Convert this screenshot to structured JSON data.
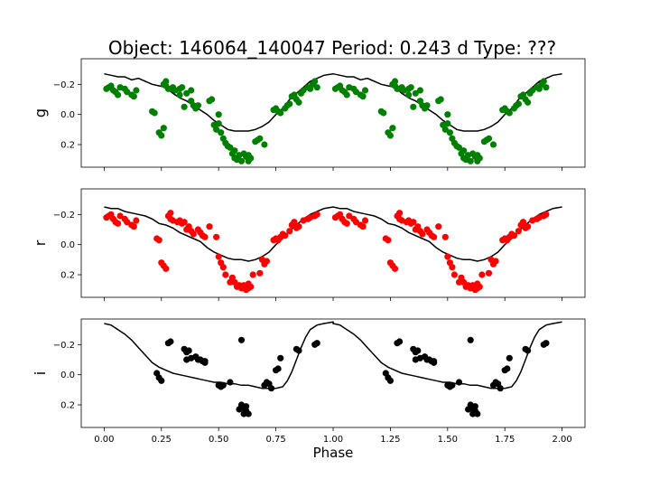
{
  "title": "Object: 146064_140047    Period: 0.243 d    Type: ???",
  "xlabel": "Phase",
  "chart_data": [
    {
      "type": "scatter",
      "panel": "g",
      "ylabel": "g",
      "color": "#008000",
      "x_ticks": [
        0.0,
        0.25,
        0.5,
        0.75,
        1.0,
        1.25,
        1.5,
        1.75,
        2.0
      ],
      "y_ticks": [
        -0.2,
        0.0,
        0.2
      ],
      "y_tick_labels": [
        "−0.2",
        "0.0",
        "0.2"
      ],
      "ylim": [
        0.35,
        -0.37
      ],
      "xlim": [
        -0.1,
        2.1
      ],
      "points": [
        [
          0.01,
          -0.17
        ],
        [
          0.02,
          -0.18
        ],
        [
          0.03,
          -0.19
        ],
        [
          0.04,
          -0.16
        ],
        [
          0.05,
          -0.15
        ],
        [
          0.06,
          -0.13
        ],
        [
          0.07,
          -0.18
        ],
        [
          0.09,
          -0.17
        ],
        [
          0.1,
          -0.15
        ],
        [
          0.12,
          -0.13
        ],
        [
          0.13,
          -0.12
        ],
        [
          0.14,
          -0.16
        ],
        [
          0.21,
          -0.02
        ],
        [
          0.22,
          -0.01
        ],
        [
          0.24,
          0.12
        ],
        [
          0.25,
          0.14
        ],
        [
          0.26,
          0.09
        ],
        [
          0.26,
          -0.2
        ],
        [
          0.27,
          -0.19
        ],
        [
          0.27,
          -0.22
        ],
        [
          0.28,
          -0.17
        ],
        [
          0.29,
          -0.17
        ],
        [
          0.3,
          -0.18
        ],
        [
          0.31,
          -0.16
        ],
        [
          0.33,
          -0.17
        ],
        [
          0.33,
          -0.13
        ],
        [
          0.34,
          -0.18
        ],
        [
          0.35,
          -0.05
        ],
        [
          0.36,
          -0.14
        ],
        [
          0.38,
          -0.16
        ],
        [
          0.38,
          -0.09
        ],
        [
          0.39,
          -0.06
        ],
        [
          0.4,
          -0.04
        ],
        [
          0.41,
          -0.06
        ],
        [
          0.46,
          -0.09
        ],
        [
          0.47,
          -0.1
        ],
        [
          0.48,
          0.07
        ],
        [
          0.49,
          0.1
        ],
        [
          0.5,
          0.06
        ],
        [
          0.5,
          0.0
        ],
        [
          0.51,
          0.12
        ],
        [
          0.52,
          0.16
        ],
        [
          0.53,
          0.19
        ],
        [
          0.54,
          0.21
        ],
        [
          0.55,
          0.22
        ],
        [
          0.56,
          0.26
        ],
        [
          0.57,
          0.24
        ],
        [
          0.57,
          0.29
        ],
        [
          0.58,
          0.3
        ],
        [
          0.59,
          0.27
        ],
        [
          0.6,
          0.31
        ],
        [
          0.61,
          0.26
        ],
        [
          0.62,
          0.28
        ],
        [
          0.63,
          0.31
        ],
        [
          0.63,
          0.27
        ],
        [
          0.64,
          0.29
        ],
        [
          0.66,
          0.18
        ],
        [
          0.67,
          0.17
        ],
        [
          0.68,
          0.16
        ],
        [
          0.7,
          0.2
        ],
        [
          0.74,
          -0.03
        ],
        [
          0.75,
          -0.04
        ],
        [
          0.76,
          -0.02
        ],
        [
          0.77,
          -0.01
        ],
        [
          0.79,
          -0.04
        ],
        [
          0.8,
          -0.06
        ],
        [
          0.81,
          -0.07
        ],
        [
          0.82,
          -0.12
        ],
        [
          0.83,
          -0.13
        ],
        [
          0.84,
          -0.1
        ],
        [
          0.85,
          -0.08
        ],
        [
          0.86,
          -0.14
        ],
        [
          0.87,
          -0.16
        ],
        [
          0.89,
          -0.18
        ],
        [
          0.9,
          -0.17
        ],
        [
          0.91,
          -0.2
        ],
        [
          0.92,
          -0.22
        ],
        [
          0.93,
          -0.18
        ]
      ]
    },
    {
      "type": "scatter",
      "panel": "r",
      "ylabel": "r",
      "color": "#ff0000",
      "x_ticks": [
        0.0,
        0.25,
        0.5,
        0.75,
        1.0,
        1.25,
        1.5,
        1.75,
        2.0
      ],
      "y_ticks": [
        -0.2,
        0.0,
        0.2
      ],
      "y_tick_labels": [
        "−0.2",
        "0.0",
        "0.2"
      ],
      "ylim": [
        0.35,
        -0.37
      ],
      "xlim": [
        -0.1,
        2.1
      ],
      "points": [
        [
          0.01,
          -0.18
        ],
        [
          0.02,
          -0.19
        ],
        [
          0.03,
          -0.2
        ],
        [
          0.04,
          -0.17
        ],
        [
          0.05,
          -0.15
        ],
        [
          0.06,
          -0.14
        ],
        [
          0.07,
          -0.19
        ],
        [
          0.09,
          -0.17
        ],
        [
          0.1,
          -0.15
        ],
        [
          0.12,
          -0.13
        ],
        [
          0.13,
          -0.12
        ],
        [
          0.14,
          -0.16
        ],
        [
          0.23,
          -0.04
        ],
        [
          0.24,
          -0.03
        ],
        [
          0.25,
          0.12
        ],
        [
          0.26,
          0.14
        ],
        [
          0.27,
          0.16
        ],
        [
          0.28,
          -0.19
        ],
        [
          0.29,
          -0.21
        ],
        [
          0.29,
          -0.17
        ],
        [
          0.3,
          -0.16
        ],
        [
          0.32,
          -0.15
        ],
        [
          0.33,
          -0.16
        ],
        [
          0.34,
          -0.14
        ],
        [
          0.35,
          -0.15
        ],
        [
          0.36,
          -0.1
        ],
        [
          0.37,
          -0.12
        ],
        [
          0.38,
          -0.09
        ],
        [
          0.39,
          -0.07
        ],
        [
          0.41,
          -0.1
        ],
        [
          0.42,
          -0.08
        ],
        [
          0.43,
          -0.06
        ],
        [
          0.44,
          -0.05
        ],
        [
          0.46,
          -0.12
        ],
        [
          0.49,
          -0.05
        ],
        [
          0.5,
          0.08
        ],
        [
          0.51,
          0.12
        ],
        [
          0.52,
          0.15
        ],
        [
          0.53,
          0.2
        ],
        [
          0.55,
          0.25
        ],
        [
          0.56,
          0.22
        ],
        [
          0.57,
          0.25
        ],
        [
          0.58,
          0.28
        ],
        [
          0.59,
          0.27
        ],
        [
          0.6,
          0.29
        ],
        [
          0.61,
          0.27
        ],
        [
          0.62,
          0.3
        ],
        [
          0.63,
          0.29
        ],
        [
          0.63,
          0.26
        ],
        [
          0.64,
          0.28
        ],
        [
          0.65,
          0.2
        ],
        [
          0.68,
          0.19
        ],
        [
          0.69,
          0.1
        ],
        [
          0.7,
          0.13
        ],
        [
          0.71,
          0.11
        ],
        [
          0.74,
          -0.03
        ],
        [
          0.75,
          -0.04
        ],
        [
          0.76,
          -0.03
        ],
        [
          0.77,
          -0.05
        ],
        [
          0.78,
          -0.07
        ],
        [
          0.79,
          -0.06
        ],
        [
          0.81,
          -0.09
        ],
        [
          0.82,
          -0.13
        ],
        [
          0.83,
          -0.15
        ],
        [
          0.84,
          -0.11
        ],
        [
          0.85,
          -0.12
        ],
        [
          0.87,
          -0.16
        ],
        [
          0.89,
          -0.17
        ],
        [
          0.9,
          -0.18
        ],
        [
          0.92,
          -0.19
        ],
        [
          0.93,
          -0.2
        ]
      ]
    },
    {
      "type": "scatter",
      "panel": "i",
      "ylabel": "i",
      "color": "#000000",
      "x_ticks": [
        0.0,
        0.25,
        0.5,
        0.75,
        1.0,
        1.25,
        1.5,
        1.75,
        2.0
      ],
      "x_tick_labels": [
        "0.00",
        "0.25",
        "0.50",
        "0.75",
        "1.00",
        "1.25",
        "1.50",
        "1.75",
        "2.00"
      ],
      "y_ticks": [
        -0.2,
        0.0,
        0.2
      ],
      "y_tick_labels": [
        "−0.2",
        "0.0",
        "0.2"
      ],
      "ylim": [
        0.35,
        -0.37
      ],
      "xlim": [
        -0.1,
        2.1
      ],
      "points": [
        [
          0.23,
          -0.01
        ],
        [
          0.24,
          0.02
        ],
        [
          0.25,
          0.04
        ],
        [
          0.28,
          -0.21
        ],
        [
          0.29,
          -0.22
        ],
        [
          0.35,
          -0.17
        ],
        [
          0.36,
          -0.15
        ],
        [
          0.37,
          -0.16
        ],
        [
          0.36,
          -0.1
        ],
        [
          0.38,
          -0.11
        ],
        [
          0.4,
          -0.12
        ],
        [
          0.41,
          -0.1
        ],
        [
          0.42,
          -0.1
        ],
        [
          0.43,
          -0.09
        ],
        [
          0.44,
          -0.09
        ],
        [
          0.44,
          -0.08
        ],
        [
          0.5,
          0.07
        ],
        [
          0.51,
          0.08
        ],
        [
          0.52,
          0.07
        ],
        [
          0.55,
          0.05
        ],
        [
          0.59,
          0.23
        ],
        [
          0.6,
          0.22
        ],
        [
          0.61,
          0.26
        ],
        [
          0.62,
          0.24
        ],
        [
          0.6,
          -0.23
        ],
        [
          0.63,
          0.26
        ],
        [
          0.6,
          0.2
        ],
        [
          0.62,
          0.21
        ],
        [
          0.7,
          0.07
        ],
        [
          0.71,
          0.05
        ],
        [
          0.72,
          0.06
        ],
        [
          0.73,
          0.09
        ],
        [
          0.75,
          -0.03
        ],
        [
          0.76,
          -0.04
        ],
        [
          0.77,
          -0.11
        ],
        [
          0.84,
          -0.17
        ],
        [
          0.85,
          -0.16
        ],
        [
          0.92,
          -0.2
        ],
        [
          0.93,
          -0.21
        ]
      ]
    }
  ],
  "model_curve": {
    "g": [
      [
        0.0,
        -0.27
      ],
      [
        0.03,
        -0.26
      ],
      [
        0.06,
        -0.25
      ],
      [
        0.09,
        -0.25
      ],
      [
        0.12,
        -0.23
      ],
      [
        0.15,
        -0.24
      ],
      [
        0.18,
        -0.22
      ],
      [
        0.21,
        -0.2
      ],
      [
        0.24,
        -0.19
      ],
      [
        0.27,
        -0.18
      ],
      [
        0.3,
        -0.14
      ],
      [
        0.33,
        -0.11
      ],
      [
        0.36,
        -0.09
      ],
      [
        0.39,
        -0.06
      ],
      [
        0.42,
        -0.03
      ],
      [
        0.45,
        0.0
      ],
      [
        0.48,
        0.04
      ],
      [
        0.51,
        0.07
      ],
      [
        0.54,
        0.1
      ],
      [
        0.57,
        0.11
      ],
      [
        0.6,
        0.11
      ],
      [
        0.63,
        0.11
      ],
      [
        0.66,
        0.1
      ],
      [
        0.69,
        0.08
      ],
      [
        0.72,
        0.05
      ],
      [
        0.75,
        0.0
      ],
      [
        0.78,
        -0.04
      ],
      [
        0.81,
        -0.1
      ],
      [
        0.84,
        -0.14
      ],
      [
        0.87,
        -0.18
      ],
      [
        0.9,
        -0.22
      ],
      [
        0.93,
        -0.24
      ],
      [
        0.96,
        -0.26
      ],
      [
        1.0,
        -0.27
      ]
    ],
    "r": [
      [
        0.0,
        -0.25
      ],
      [
        0.03,
        -0.24
      ],
      [
        0.06,
        -0.24
      ],
      [
        0.09,
        -0.22
      ],
      [
        0.12,
        -0.21
      ],
      [
        0.15,
        -0.2
      ],
      [
        0.18,
        -0.19
      ],
      [
        0.21,
        -0.17
      ],
      [
        0.24,
        -0.14
      ],
      [
        0.27,
        -0.13
      ],
      [
        0.3,
        -0.11
      ],
      [
        0.33,
        -0.08
      ],
      [
        0.36,
        -0.06
      ],
      [
        0.39,
        -0.04
      ],
      [
        0.42,
        -0.02
      ],
      [
        0.45,
        0.02
      ],
      [
        0.48,
        0.05
      ],
      [
        0.51,
        0.07
      ],
      [
        0.54,
        0.09
      ],
      [
        0.57,
        0.1
      ],
      [
        0.6,
        0.1
      ],
      [
        0.63,
        0.11
      ],
      [
        0.66,
        0.1
      ],
      [
        0.69,
        0.08
      ],
      [
        0.72,
        0.05
      ],
      [
        0.75,
        0.0
      ],
      [
        0.78,
        -0.04
      ],
      [
        0.81,
        -0.09
      ],
      [
        0.84,
        -0.13
      ],
      [
        0.87,
        -0.17
      ],
      [
        0.9,
        -0.2
      ],
      [
        0.93,
        -0.22
      ],
      [
        0.96,
        -0.24
      ],
      [
        1.0,
        -0.25
      ]
    ],
    "i": [
      [
        0.0,
        -0.34
      ],
      [
        0.03,
        -0.33
      ],
      [
        0.06,
        -0.3
      ],
      [
        0.09,
        -0.27
      ],
      [
        0.12,
        -0.23
      ],
      [
        0.15,
        -0.18
      ],
      [
        0.18,
        -0.13
      ],
      [
        0.21,
        -0.08
      ],
      [
        0.24,
        -0.05
      ],
      [
        0.27,
        -0.03
      ],
      [
        0.3,
        -0.01
      ],
      [
        0.33,
        0.0
      ],
      [
        0.36,
        0.01
      ],
      [
        0.39,
        0.02
      ],
      [
        0.42,
        0.03
      ],
      [
        0.45,
        0.04
      ],
      [
        0.48,
        0.05
      ],
      [
        0.51,
        0.05
      ],
      [
        0.54,
        0.06
      ],
      [
        0.57,
        0.06
      ],
      [
        0.6,
        0.07
      ],
      [
        0.63,
        0.07
      ],
      [
        0.66,
        0.08
      ],
      [
        0.69,
        0.09
      ],
      [
        0.72,
        0.09
      ],
      [
        0.75,
        0.09
      ],
      [
        0.78,
        0.08
      ],
      [
        0.8,
        0.04
      ],
      [
        0.82,
        -0.02
      ],
      [
        0.84,
        -0.1
      ],
      [
        0.86,
        -0.18
      ],
      [
        0.88,
        -0.25
      ],
      [
        0.9,
        -0.3
      ],
      [
        0.93,
        -0.33
      ],
      [
        0.96,
        -0.34
      ],
      [
        1.0,
        -0.35
      ]
    ]
  }
}
